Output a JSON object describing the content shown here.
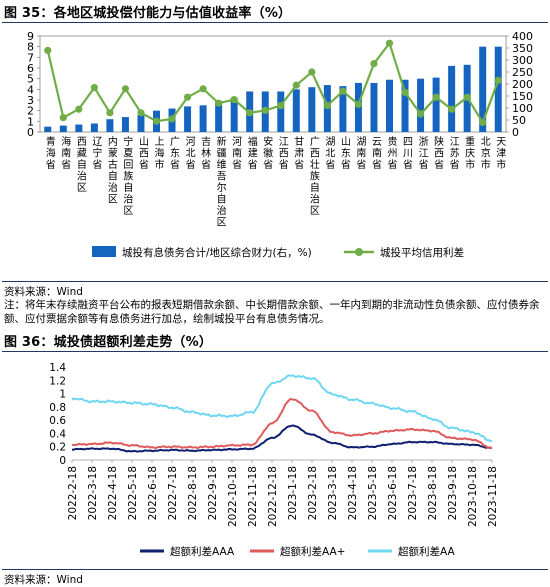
{
  "fig1": {
    "title": "图 35：各地区城投偿付能力与估值收益率（%）",
    "source": "资料来源：Wind",
    "note": "注：将年末存续融资平台公布的报表短期借款余额、中长期借款余额、一年内到期的非流动性负债余额、应付债券余额、应付票据余额等有息债务进行加总，绘制城投平台有息债务情况。"
  },
  "fig2": {
    "title": "图 36：城投债超额利差走势（%）",
    "source": "资料来源：Wind"
  },
  "colors": {
    "bar": "#1565c0",
    "greenLine": "#70ad47",
    "aaa": "#0d1f6e",
    "aaplus": "#e05a5a",
    "aa": "#6fd6f2",
    "rule": "#1f3864"
  },
  "chart_data": [
    {
      "type": "bar",
      "categories": [
        "青海省",
        "海南省",
        "西藏自治区",
        "辽宁省",
        "内蒙古自治区",
        "宁夏回族自治区",
        "山西省",
        "上海市",
        "广东省",
        "河北省",
        "吉林省",
        "新疆维吾尔自治区",
        "河南省",
        "福建省",
        "安徽省",
        "江西省",
        "甘肃省",
        "广西壮族自治区",
        "湖北省",
        "山东省",
        "湖南省",
        "云南省",
        "贵州省",
        "四川省",
        "浙江省",
        "陕西省",
        "江苏省",
        "重庆市",
        "北京市",
        "天津市"
      ],
      "series": [
        {
          "name": "城投有息债务合计/地区综合财力(右，%)",
          "type": "bar",
          "axis": "left",
          "values": [
            0.5,
            0.6,
            0.7,
            0.8,
            1.2,
            1.4,
            1.6,
            2.0,
            2.2,
            2.4,
            2.5,
            2.9,
            3.2,
            3.8,
            3.8,
            3.8,
            4.0,
            4.2,
            4.4,
            4.3,
            4.6,
            4.6,
            4.9,
            4.9,
            5.0,
            5.1,
            6.2,
            6.3,
            8.0,
            8.0
          ]
        },
        {
          "name": "城投平均信用利差",
          "type": "line",
          "axis": "right",
          "values": [
            340,
            60,
            95,
            185,
            80,
            180,
            80,
            45,
            55,
            145,
            180,
            120,
            135,
            80,
            90,
            110,
            195,
            250,
            110,
            170,
            115,
            285,
            370,
            165,
            75,
            145,
            95,
            145,
            40,
            215
          ]
        }
      ],
      "ylim_left": [
        0,
        9
      ],
      "ylim_right": [
        0,
        400
      ],
      "yticks_left": [
        0,
        1,
        2,
        3,
        4,
        5,
        6,
        7,
        8,
        9
      ],
      "yticks_right": [
        0,
        50,
        100,
        150,
        200,
        250,
        300,
        350,
        400
      ],
      "legend_position": "bottom"
    },
    {
      "type": "line",
      "x": [
        "2022-2-18",
        "2022-3-18",
        "2022-4-18",
        "2022-5-18",
        "2022-6-18",
        "2022-7-18",
        "2022-8-18",
        "2022-9-18",
        "2022-10-18",
        "2022-11-18",
        "2022-12-18",
        "2023-1-18",
        "2023-2-18",
        "2023-3-18",
        "2023-4-18",
        "2023-5-18",
        "2023-6-18",
        "2023-7-18",
        "2023-8-18",
        "2023-9-18",
        "2023-10-18",
        "2023-11-18"
      ],
      "series": [
        {
          "name": "超额利差AAA",
          "values": [
            0.16,
            0.17,
            0.17,
            0.13,
            0.14,
            0.15,
            0.14,
            0.15,
            0.16,
            0.17,
            0.33,
            0.52,
            0.38,
            0.26,
            0.19,
            0.2,
            0.24,
            0.27,
            0.27,
            0.24,
            0.23,
            0.18
          ]
        },
        {
          "name": "超额利差AA+",
          "values": [
            0.23,
            0.24,
            0.26,
            0.22,
            0.19,
            0.2,
            0.19,
            0.2,
            0.22,
            0.23,
            0.55,
            0.92,
            0.74,
            0.42,
            0.37,
            0.4,
            0.44,
            0.46,
            0.44,
            0.33,
            0.31,
            0.18
          ]
        },
        {
          "name": "超额利差AA",
          "values": [
            0.93,
            0.88,
            0.88,
            0.86,
            0.84,
            0.79,
            0.72,
            0.67,
            0.66,
            0.72,
            1.15,
            1.27,
            1.23,
            0.99,
            0.91,
            0.85,
            0.78,
            0.73,
            0.62,
            0.48,
            0.42,
            0.29
          ]
        }
      ],
      "ylim": [
        0,
        1.4
      ],
      "yticks": [
        0,
        0.2,
        0.4,
        0.6,
        0.8,
        1,
        1.2,
        1.4
      ],
      "legend_position": "bottom"
    }
  ]
}
